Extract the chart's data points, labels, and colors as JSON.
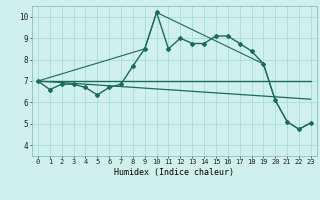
{
  "title": "",
  "xlabel": "Humidex (Indice chaleur)",
  "bg_color": "#cff0eb",
  "grid_color": "#a8ddd7",
  "line_color": "#1a6b5a",
  "xlim": [
    -0.5,
    23.5
  ],
  "ylim": [
    3.5,
    10.5
  ],
  "yticks": [
    4,
    5,
    6,
    7,
    8,
    9,
    10
  ],
  "xticks": [
    0,
    1,
    2,
    3,
    4,
    5,
    6,
    7,
    8,
    9,
    10,
    11,
    12,
    13,
    14,
    15,
    16,
    17,
    18,
    19,
    20,
    21,
    22,
    23
  ],
  "series": {
    "line1_main": {
      "x": [
        0,
        1,
        2,
        3,
        4,
        5,
        6,
        7,
        8,
        9,
        10,
        11,
        12,
        13,
        14,
        15,
        16,
        17,
        18,
        19,
        20,
        21,
        22,
        23
      ],
      "y": [
        7.0,
        6.6,
        6.85,
        6.85,
        6.7,
        6.35,
        6.7,
        6.85,
        7.7,
        8.5,
        10.2,
        8.5,
        9.0,
        8.75,
        8.75,
        9.1,
        9.1,
        8.75,
        8.4,
        7.8,
        6.1,
        5.1,
        4.75,
        5.05
      ],
      "marker": "D",
      "markersize": 2.0,
      "linewidth": 1.0
    },
    "line2_flat": {
      "x": [
        0,
        23
      ],
      "y": [
        7.0,
        7.0
      ],
      "marker": null,
      "markersize": 0,
      "linewidth": 1.0
    },
    "line3_diagonal": {
      "x": [
        0,
        23
      ],
      "y": [
        7.0,
        6.15
      ],
      "marker": null,
      "markersize": 0,
      "linewidth": 0.9
    },
    "line4_outline": {
      "x": [
        0,
        9,
        10,
        19,
        20,
        21,
        22,
        23
      ],
      "y": [
        7.0,
        8.5,
        10.2,
        7.8,
        6.1,
        5.1,
        4.75,
        5.05
      ],
      "marker": null,
      "markersize": 0,
      "linewidth": 0.8
    }
  }
}
